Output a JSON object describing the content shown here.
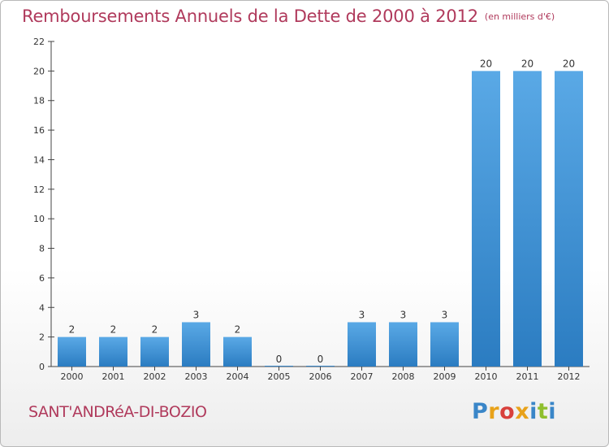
{
  "title": "Remboursements Annuels de la Dette de 2000 à 2012",
  "subtitle": "(en milliers d'€)",
  "commune": "SANT'ANDRéA-DI-BOZIO",
  "logo": {
    "text": "Proxiti",
    "letter_colors": [
      "#3a86c8",
      "#e8a21a",
      "#d8403c",
      "#e8a21a",
      "#3a86c8",
      "#8fbf2e",
      "#3a86c8"
    ]
  },
  "colors": {
    "title": "#b03a5c",
    "bar_light": "#5aa9e6",
    "bar_dark": "#2b7cc1",
    "axis": "#444444"
  },
  "chart_data": {
    "type": "bar",
    "title": "Remboursements Annuels de la Dette de 2000 à 2012",
    "subtitle": "(en milliers d'€)",
    "categories": [
      "2000",
      "2001",
      "2002",
      "2003",
      "2004",
      "2005",
      "2006",
      "2007",
      "2008",
      "2009",
      "2010",
      "2011",
      "2012"
    ],
    "values": [
      2,
      2,
      2,
      3,
      2,
      0,
      0,
      3,
      3,
      3,
      20,
      20,
      20
    ],
    "data_labels": [
      "2",
      "2",
      "2",
      "3",
      "2",
      "0",
      "0",
      "3",
      "3",
      "3",
      "20",
      "20",
      "20"
    ],
    "ylim": [
      0,
      22
    ],
    "yticks": [
      0,
      2,
      4,
      6,
      8,
      10,
      12,
      14,
      16,
      18,
      20,
      22
    ],
    "grid": false,
    "xlabel": "",
    "ylabel": ""
  }
}
